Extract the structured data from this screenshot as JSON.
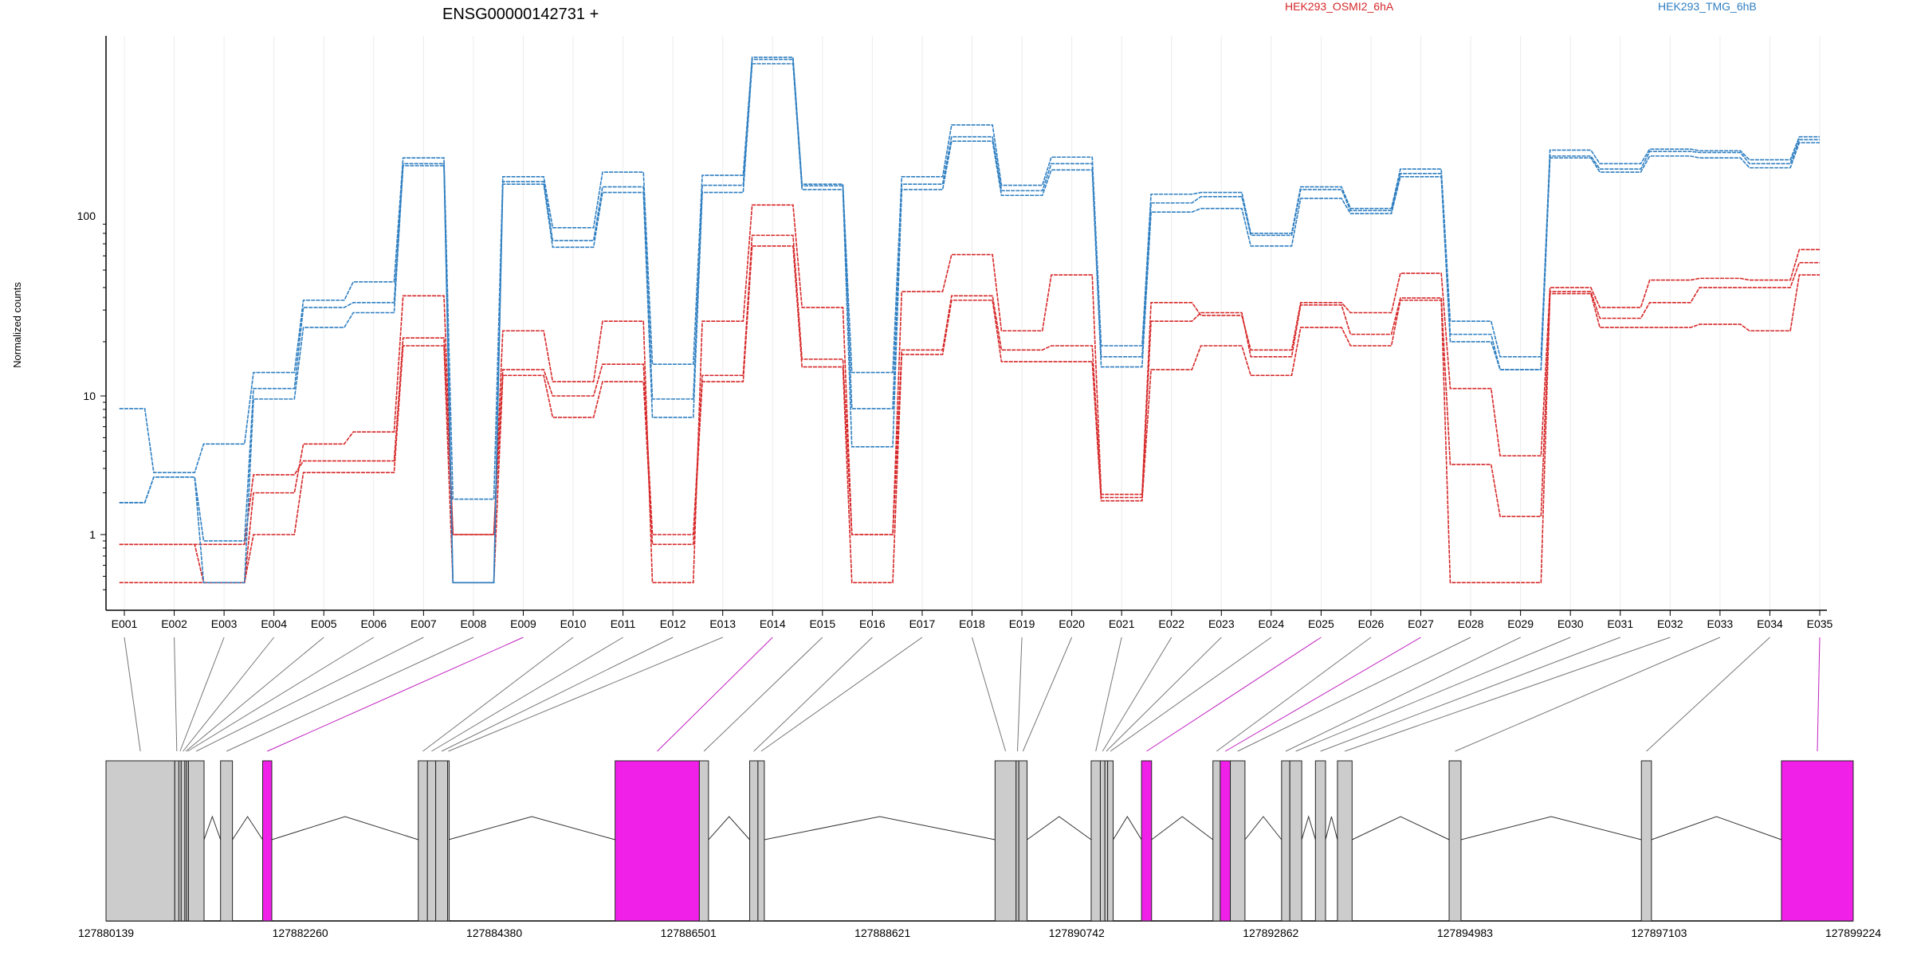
{
  "chart_data": {
    "type": "line",
    "title": "ENSG00000142731 +",
    "ylabel": "Normalized counts",
    "xlabel": "",
    "y_scale": "log",
    "ylim": [
      0.35,
      900
    ],
    "y_ticks": [
      {
        "value": 1,
        "label": "1"
      },
      {
        "value": 10,
        "label": "10"
      },
      {
        "value": 100,
        "label": "100"
      }
    ],
    "grid": "vertical lines at each exon bin",
    "legend": "top, above plot",
    "categories": [
      "E001",
      "E002",
      "E003",
      "E004",
      "E005",
      "E006",
      "E007",
      "E008",
      "E009",
      "E010",
      "E011",
      "E012",
      "E013",
      "E014",
      "E015",
      "E016",
      "E017",
      "E018",
      "E019",
      "E020",
      "E021",
      "E022",
      "E023",
      "E024",
      "E025",
      "E026",
      "E027",
      "E028",
      "E029",
      "E030",
      "E031",
      "E032",
      "E033",
      "E034",
      "E035"
    ],
    "series": [
      {
        "group": "HEK293_OSMI2_6hA",
        "color": "#d62728",
        "values": [
          0.85,
          0.85,
          0.45,
          1.0,
          2.8,
          2.8,
          19,
          0.45,
          13,
          7,
          12,
          0.85,
          12,
          68,
          14.5,
          0.45,
          17,
          34,
          15.5,
          15.5,
          1.75,
          14,
          19,
          13,
          24,
          19,
          34,
          0.45,
          0.45,
          37,
          24,
          24,
          25,
          23,
          47
        ]
      },
      {
        "group": "HEK293_OSMI2_6hA",
        "color": "#d62728",
        "values": [
          0.85,
          0.85,
          0.85,
          2.7,
          3.4,
          3.4,
          21,
          1.0,
          14,
          10,
          15,
          1.0,
          13,
          78,
          16,
          1.0,
          18,
          36,
          18,
          19,
          1.85,
          26,
          29,
          16.5,
          32,
          22,
          35,
          3.2,
          1.35,
          38,
          27,
          33,
          40,
          40,
          55
        ]
      },
      {
        "group": "HEK293_OSMI2_6hA",
        "color": "#d62728",
        "values": [
          0.45,
          0.45,
          0.45,
          2.0,
          4.5,
          5.5,
          36,
          1.0,
          23,
          12,
          26,
          0.45,
          26,
          115,
          31,
          1.0,
          38,
          61,
          23,
          47,
          1.95,
          33,
          28,
          18,
          33,
          29,
          48,
          11,
          3.7,
          40,
          31,
          44,
          45,
          44,
          65
        ]
      },
      {
        "group": "HEK293_TMG_6hB",
        "color": "#2f7fc1",
        "values": [
          1.7,
          2.6,
          0.45,
          9.5,
          24,
          29,
          190,
          0.45,
          150,
          67,
          135,
          7,
          135,
          700,
          140,
          4.3,
          140,
          260,
          130,
          180,
          14.5,
          105,
          110,
          68,
          125,
          103,
          165,
          20,
          14,
          210,
          175,
          215,
          210,
          185,
          255
        ]
      },
      {
        "group": "HEK293_TMG_6hB",
        "color": "#2f7fc1",
        "values": [
          1.7,
          2.6,
          0.9,
          11,
          31,
          33,
          195,
          0.45,
          155,
          73,
          145,
          9.5,
          148,
          740,
          147,
          8.1,
          150,
          275,
          138,
          195,
          16.5,
          118,
          128,
          78,
          140,
          107,
          172,
          22,
          14,
          215,
          182,
          228,
          225,
          195,
          265
        ]
      },
      {
        "group": "HEK293_TMG_6hB",
        "color": "#2f7fc1",
        "values": [
          8.1,
          2.8,
          4.5,
          13.5,
          34,
          43,
          210,
          1.8,
          165,
          86,
          175,
          15,
          168,
          760,
          150,
          13.5,
          165,
          320,
          148,
          212,
          19,
          132,
          135,
          80,
          145,
          110,
          182,
          26,
          16.5,
          232,
          195,
          235,
          230,
          205,
          275
        ]
      }
    ],
    "legend_labels": [
      "HEK293_OSMI2_6hA",
      "HEK293_TMG_6hB"
    ],
    "gene_coordinates": [
      "127880139",
      "127882260",
      "127884380",
      "127886501",
      "127888621",
      "127890742",
      "127892862",
      "127894983",
      "127897103",
      "127899224"
    ],
    "gene_range": [
      127880139,
      127899224
    ],
    "exons": [
      {
        "id": "E001",
        "start": 127880139,
        "end": 127880890,
        "hl": false
      },
      {
        "id": "E002",
        "start": 127880890,
        "end": 127880935,
        "hl": false
      },
      {
        "id": "E003",
        "start": 127880935,
        "end": 127880960,
        "hl": false
      },
      {
        "id": "E004",
        "start": 127880960,
        "end": 127881000,
        "hl": false
      },
      {
        "id": "E005",
        "start": 127881000,
        "end": 127881020,
        "hl": false
      },
      {
        "id": "E006",
        "start": 127881020,
        "end": 127881040,
        "hl": false
      },
      {
        "id": "E007",
        "start": 127881040,
        "end": 127881210,
        "hl": false
      },
      {
        "id": "E008",
        "start": 127881390,
        "end": 127881520,
        "hl": false
      },
      {
        "id": "E009",
        "start": 127881850,
        "end": 127881950,
        "hl": true
      },
      {
        "id": "E010",
        "start": 127883550,
        "end": 127883650,
        "hl": false
      },
      {
        "id": "E011",
        "start": 127883650,
        "end": 127883740,
        "hl": false
      },
      {
        "id": "E012",
        "start": 127883740,
        "end": 127883870,
        "hl": false
      },
      {
        "id": "E013",
        "start": 127883870,
        "end": 127883880,
        "hl": false
      },
      {
        "id": "E014",
        "start": 127885700,
        "end": 127886620,
        "hl": true
      },
      {
        "id": "E015",
        "start": 127886620,
        "end": 127886720,
        "hl": false
      },
      {
        "id": "E016",
        "start": 127887170,
        "end": 127887260,
        "hl": false
      },
      {
        "id": "E017",
        "start": 127887260,
        "end": 127887330,
        "hl": false
      },
      {
        "id": "E018",
        "start": 127889850,
        "end": 127890080,
        "hl": false
      },
      {
        "id": "E019",
        "start": 127890080,
        "end": 127890110,
        "hl": false
      },
      {
        "id": "E020",
        "start": 127890110,
        "end": 127890200,
        "hl": false
      },
      {
        "id": "E021",
        "start": 127890900,
        "end": 127891000,
        "hl": false
      },
      {
        "id": "E022",
        "start": 127891000,
        "end": 127891050,
        "hl": false
      },
      {
        "id": "E023",
        "start": 127891050,
        "end": 127891080,
        "hl": false
      },
      {
        "id": "E024",
        "start": 127891080,
        "end": 127891140,
        "hl": false
      },
      {
        "id": "E025",
        "start": 127891450,
        "end": 127891560,
        "hl": true
      },
      {
        "id": "E026",
        "start": 127892230,
        "end": 127892310,
        "hl": false
      },
      {
        "id": "E027",
        "start": 127892310,
        "end": 127892420,
        "hl": true
      },
      {
        "id": "E028",
        "start": 127892420,
        "end": 127892580,
        "hl": false
      },
      {
        "id": "E029",
        "start": 127892980,
        "end": 127893070,
        "hl": false
      },
      {
        "id": "E030",
        "start": 127893070,
        "end": 127893200,
        "hl": false
      },
      {
        "id": "E031",
        "start": 127893350,
        "end": 127893460,
        "hl": false
      },
      {
        "id": "E032",
        "start": 127893590,
        "end": 127893750,
        "hl": false
      },
      {
        "id": "E033",
        "start": 127894810,
        "end": 127894940,
        "hl": false
      },
      {
        "id": "E034",
        "start": 127896910,
        "end": 127897020,
        "hl": false
      },
      {
        "id": "E035",
        "start": 127898440,
        "end": 127899224,
        "hl": true
      }
    ],
    "colors": {
      "OSMI2": "#d62728",
      "TMG": "#2f7fc1",
      "exon_fill": "#cccccc",
      "exon_highlight": "#f020e8",
      "grid": "#ececec"
    }
  }
}
